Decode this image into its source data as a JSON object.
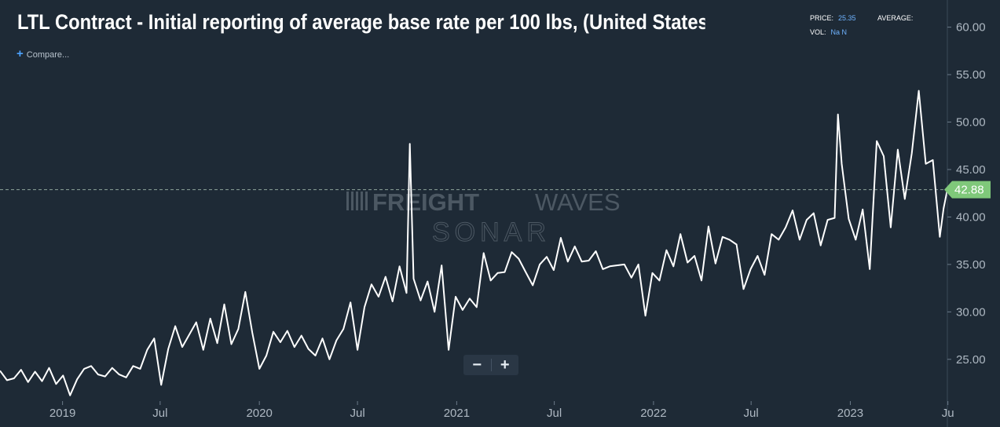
{
  "title": "LTL Contract - Initial reporting of average base rate per 100 lbs, (United States of America)",
  "compare_label": "Compare...",
  "stats": {
    "price_label": "PRICE:",
    "price_value": "25.35",
    "average_label": "AVERAGE:",
    "average_value": "",
    "vol_label": "VOL:",
    "vol_value": "Na N"
  },
  "watermark": {
    "line1_a": "FREIGHT",
    "line1_b": "WAVES",
    "line2": "SONAR"
  },
  "zoom": {
    "minus": "−",
    "plus": "+"
  },
  "colors": {
    "background": "#1e2a36",
    "line": "#ffffff",
    "price_tag": "#7fc87a",
    "grid": "#2b3947",
    "accent": "#4da3ff"
  },
  "chart_data": {
    "type": "line",
    "title": "LTL Contract - Initial reporting of average base rate per 100 lbs, (United States of America)",
    "x_range": [
      "2018-09-07",
      "2023-06-30"
    ],
    "ylim": [
      20.6,
      62.2
    ],
    "y_ticks": [
      "60.00",
      "55.00",
      "50.00",
      "45.00",
      "40.00",
      "35.00",
      "30.00",
      "25.00"
    ],
    "x_ticks": [
      {
        "date": "2019-01-01",
        "label": "2019"
      },
      {
        "date": "2019-07-01",
        "label": "Jul"
      },
      {
        "date": "2020-01-01",
        "label": "2020"
      },
      {
        "date": "2020-07-01",
        "label": "Jul"
      },
      {
        "date": "2021-01-01",
        "label": "2021"
      },
      {
        "date": "2021-07-01",
        "label": "Jul"
      },
      {
        "date": "2022-01-01",
        "label": "2022"
      },
      {
        "date": "2022-07-01",
        "label": "Jul"
      },
      {
        "date": "2023-01-01",
        "label": "2023"
      },
      {
        "date": "2023-07-01",
        "label": "Ju"
      }
    ],
    "last_value_label": "42.88",
    "last_value": 42.88,
    "grid": false,
    "series": [
      {
        "values": [
          [
            "2018-09-07",
            23.8
          ],
          [
            "2018-09-20",
            22.8
          ],
          [
            "2018-10-03",
            23.0
          ],
          [
            "2018-10-16",
            23.9
          ],
          [
            "2018-10-29",
            22.6
          ],
          [
            "2018-11-11",
            23.7
          ],
          [
            "2018-11-24",
            22.7
          ],
          [
            "2018-12-07",
            24.1
          ],
          [
            "2018-12-20",
            22.4
          ],
          [
            "2019-01-02",
            23.3
          ],
          [
            "2019-01-15",
            21.2
          ],
          [
            "2019-01-28",
            22.9
          ],
          [
            "2019-02-10",
            24.0
          ],
          [
            "2019-02-23",
            24.3
          ],
          [
            "2019-03-08",
            23.4
          ],
          [
            "2019-03-21",
            23.2
          ],
          [
            "2019-04-03",
            24.1
          ],
          [
            "2019-04-16",
            23.4
          ],
          [
            "2019-04-29",
            23.1
          ],
          [
            "2019-05-12",
            24.3
          ],
          [
            "2019-05-25",
            24.0
          ],
          [
            "2019-06-07",
            26.0
          ],
          [
            "2019-06-20",
            27.2
          ],
          [
            "2019-07-03",
            22.3
          ],
          [
            "2019-07-16",
            26.1
          ],
          [
            "2019-07-29",
            28.5
          ],
          [
            "2019-08-11",
            26.3
          ],
          [
            "2019-08-24",
            27.6
          ],
          [
            "2019-09-06",
            28.9
          ],
          [
            "2019-09-19",
            26.0
          ],
          [
            "2019-10-02",
            29.3
          ],
          [
            "2019-10-15",
            26.7
          ],
          [
            "2019-10-28",
            30.8
          ],
          [
            "2019-11-10",
            26.6
          ],
          [
            "2019-11-23",
            28.2
          ],
          [
            "2019-12-06",
            32.1
          ],
          [
            "2019-12-19",
            27.8
          ],
          [
            "2020-01-01",
            24.0
          ],
          [
            "2020-01-14",
            25.4
          ],
          [
            "2020-01-27",
            27.9
          ],
          [
            "2020-02-09",
            26.8
          ],
          [
            "2020-02-22",
            28.0
          ],
          [
            "2020-03-06",
            26.3
          ],
          [
            "2020-03-19",
            27.5
          ],
          [
            "2020-04-01",
            26.1
          ],
          [
            "2020-04-14",
            25.4
          ],
          [
            "2020-04-27",
            27.2
          ],
          [
            "2020-05-10",
            25.0
          ],
          [
            "2020-05-23",
            27.0
          ],
          [
            "2020-06-05",
            28.2
          ],
          [
            "2020-06-18",
            31.0
          ],
          [
            "2020-07-01",
            26.0
          ],
          [
            "2020-07-14",
            30.5
          ],
          [
            "2020-07-27",
            32.9
          ],
          [
            "2020-08-09",
            31.6
          ],
          [
            "2020-08-22",
            33.7
          ],
          [
            "2020-09-04",
            31.1
          ],
          [
            "2020-09-17",
            34.8
          ],
          [
            "2020-09-30",
            32.0
          ],
          [
            "2020-10-06",
            47.7
          ],
          [
            "2020-10-13",
            33.5
          ],
          [
            "2020-10-26",
            31.2
          ],
          [
            "2020-11-08",
            33.2
          ],
          [
            "2020-11-21",
            30.0
          ],
          [
            "2020-12-04",
            34.9
          ],
          [
            "2020-12-17",
            26.0
          ],
          [
            "2020-12-30",
            31.6
          ],
          [
            "2021-01-12",
            30.2
          ],
          [
            "2021-01-25",
            31.4
          ],
          [
            "2021-02-07",
            30.5
          ],
          [
            "2021-02-20",
            36.2
          ],
          [
            "2021-03-05",
            33.3
          ],
          [
            "2021-03-18",
            34.1
          ],
          [
            "2021-03-31",
            34.2
          ],
          [
            "2021-04-13",
            36.3
          ],
          [
            "2021-04-26",
            35.6
          ],
          [
            "2021-05-09",
            34.2
          ],
          [
            "2021-05-22",
            32.8
          ],
          [
            "2021-06-04",
            35.0
          ],
          [
            "2021-06-17",
            35.8
          ],
          [
            "2021-06-30",
            34.4
          ],
          [
            "2021-07-13",
            37.8
          ],
          [
            "2021-07-26",
            35.3
          ],
          [
            "2021-08-08",
            36.9
          ],
          [
            "2021-08-21",
            35.3
          ],
          [
            "2021-09-03",
            35.4
          ],
          [
            "2021-09-16",
            36.4
          ],
          [
            "2021-09-29",
            34.5
          ],
          [
            "2021-10-12",
            34.8
          ],
          [
            "2021-11-08",
            35.0
          ],
          [
            "2021-11-21",
            33.6
          ],
          [
            "2021-12-04",
            35.0
          ],
          [
            "2021-12-17",
            29.6
          ],
          [
            "2021-12-30",
            34.1
          ],
          [
            "2022-01-12",
            33.3
          ],
          [
            "2022-01-25",
            36.5
          ],
          [
            "2022-02-07",
            34.8
          ],
          [
            "2022-02-20",
            38.2
          ],
          [
            "2022-03-05",
            35.2
          ],
          [
            "2022-03-18",
            35.9
          ],
          [
            "2022-03-31",
            33.3
          ],
          [
            "2022-04-13",
            39.0
          ],
          [
            "2022-04-26",
            35.1
          ],
          [
            "2022-05-09",
            37.9
          ],
          [
            "2022-05-22",
            37.6
          ],
          [
            "2022-06-04",
            37.1
          ],
          [
            "2022-06-17",
            32.4
          ],
          [
            "2022-06-30",
            34.5
          ],
          [
            "2022-07-13",
            35.9
          ],
          [
            "2022-07-26",
            33.9
          ],
          [
            "2022-08-08",
            38.2
          ],
          [
            "2022-08-21",
            37.6
          ],
          [
            "2022-09-03",
            38.9
          ],
          [
            "2022-09-16",
            40.7
          ],
          [
            "2022-09-29",
            37.6
          ],
          [
            "2022-10-12",
            39.7
          ],
          [
            "2022-10-25",
            40.4
          ],
          [
            "2022-11-07",
            37.0
          ],
          [
            "2022-11-20",
            39.7
          ],
          [
            "2022-12-03",
            39.9
          ],
          [
            "2022-12-09",
            50.8
          ],
          [
            "2022-12-16",
            45.6
          ],
          [
            "2022-12-29",
            39.8
          ],
          [
            "2023-01-11",
            37.6
          ],
          [
            "2023-01-24",
            40.8
          ],
          [
            "2023-02-06",
            34.5
          ],
          [
            "2023-02-19",
            48.0
          ],
          [
            "2023-03-04",
            46.4
          ],
          [
            "2023-03-17",
            38.9
          ],
          [
            "2023-03-30",
            47.1
          ],
          [
            "2023-04-12",
            41.9
          ],
          [
            "2023-04-25",
            46.7
          ],
          [
            "2023-05-08",
            53.3
          ],
          [
            "2023-05-21",
            45.6
          ],
          [
            "2023-06-03",
            46.0
          ],
          [
            "2023-06-16",
            37.9
          ],
          [
            "2023-06-23",
            40.9
          ],
          [
            "2023-06-30",
            42.9
          ]
        ]
      }
    ]
  }
}
